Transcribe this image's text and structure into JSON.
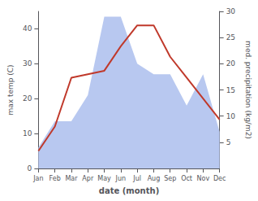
{
  "chart_data": {
    "type": "line",
    "categories": [
      "Jan",
      "Feb",
      "Mar",
      "Apr",
      "May",
      "Jun",
      "Jul",
      "Aug",
      "Sep",
      "Oct",
      "Nov",
      "Dec"
    ],
    "xlabel": "date (month)",
    "ylabel": "max temp (C)",
    "y2label": "med. precipitation (kg/m2)",
    "ylim": [
      0,
      45
    ],
    "yticks": [
      0,
      10,
      20,
      30,
      40
    ],
    "y2lim": [
      0,
      30
    ],
    "y2ticks": [
      5,
      10,
      15,
      20,
      25,
      30
    ],
    "grid": false,
    "series": [
      {
        "type": "area",
        "axis": "y2",
        "color": "#b8c8f0",
        "values": [
          4,
          9,
          9,
          14,
          29,
          29,
          20,
          18,
          18,
          12,
          18,
          7
        ]
      },
      {
        "type": "line",
        "color": "#c0392b",
        "values": [
          5,
          12,
          26,
          27,
          28,
          35,
          41,
          41,
          32,
          26,
          20,
          14
        ]
      }
    ]
  }
}
